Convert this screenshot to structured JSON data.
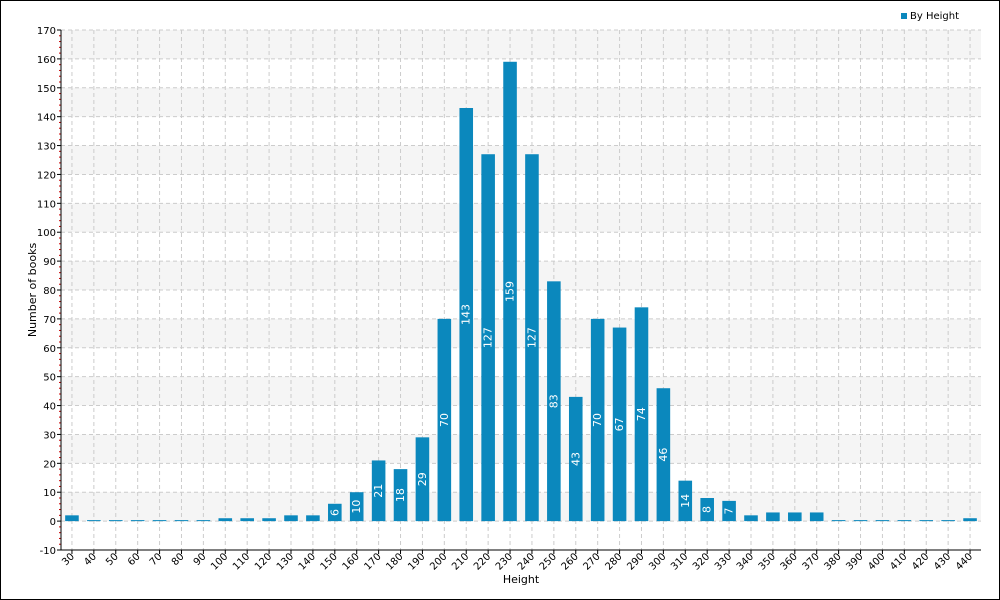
{
  "chart_data": {
    "type": "bar",
    "categories": [
      "30",
      "40",
      "50",
      "60",
      "70",
      "80",
      "90",
      "100",
      "110",
      "120",
      "130",
      "140",
      "150",
      "160",
      "170",
      "180",
      "190",
      "200",
      "210",
      "220",
      "230",
      "240",
      "250",
      "260",
      "270",
      "280",
      "290",
      "300",
      "310",
      "320",
      "330",
      "340",
      "350",
      "360",
      "370",
      "380",
      "390",
      "400",
      "410",
      "420",
      "430",
      "440"
    ],
    "series": [
      {
        "name": "By Height",
        "values": [
          2,
          0,
          0,
          0,
          0,
          0,
          0,
          1,
          1,
          1,
          2,
          2,
          6,
          10,
          21,
          18,
          29,
          70,
          143,
          127,
          159,
          127,
          83,
          43,
          70,
          67,
          74,
          46,
          14,
          8,
          7,
          2,
          3,
          3,
          3,
          0,
          0,
          0,
          0,
          0,
          0,
          1
        ]
      }
    ],
    "data_labels": [
      "",
      "",
      "",
      "",
      "",
      "",
      "",
      "",
      "",
      "",
      "",
      "",
      "6",
      "10",
      "21",
      "18",
      "29",
      "70",
      "143",
      "127",
      "159",
      "127",
      "83",
      "43",
      "70",
      "67",
      "74",
      "46",
      "14",
      "8",
      "7",
      "",
      "",
      "",
      "",
      "",
      "",
      "",
      "",
      "",
      "",
      ""
    ],
    "xlabel": "Height",
    "ylabel": "Number of books",
    "ylim": [
      -10,
      170
    ],
    "yticks": [
      -10,
      0,
      10,
      20,
      30,
      40,
      50,
      60,
      70,
      80,
      90,
      100,
      110,
      120,
      130,
      140,
      150,
      160,
      170
    ],
    "grid": true,
    "legend": "top-right",
    "colors": {
      "bar": "#0b88bd",
      "band": "#f5f5f5",
      "grid": "#cccccc",
      "axis": "#000000",
      "minor_tick": "#cc0000"
    }
  }
}
